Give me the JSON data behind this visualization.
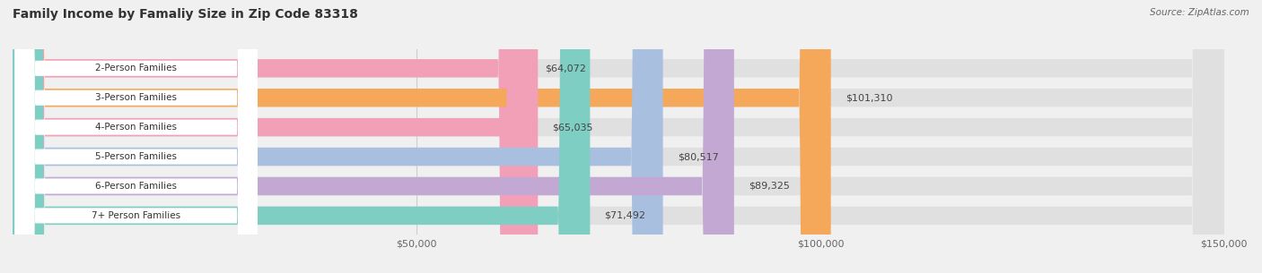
{
  "title": "Family Income by Famaliy Size in Zip Code 83318",
  "source": "Source: ZipAtlas.com",
  "categories": [
    "2-Person Families",
    "3-Person Families",
    "4-Person Families",
    "5-Person Families",
    "6-Person Families",
    "7+ Person Families"
  ],
  "values": [
    64072,
    101310,
    65035,
    80517,
    89325,
    71492
  ],
  "bar_colors": [
    "#f2a0b8",
    "#f5a85a",
    "#f2a0b8",
    "#a8bfe0",
    "#c4a8d4",
    "#7ecec4"
  ],
  "value_labels": [
    "$64,072",
    "$101,310",
    "$65,035",
    "$80,517",
    "$89,325",
    "$71,492"
  ],
  "xlim": [
    0,
    150000
  ],
  "xtick_values": [
    50000,
    100000,
    150000
  ],
  "xtick_labels": [
    "$50,000",
    "$100,000",
    "$150,000"
  ],
  "background_color": "#f0f0f0",
  "bar_bg_color": "#e0e0e0",
  "title_fontsize": 10,
  "bar_height": 0.62,
  "figsize": [
    14.06,
    3.05
  ]
}
